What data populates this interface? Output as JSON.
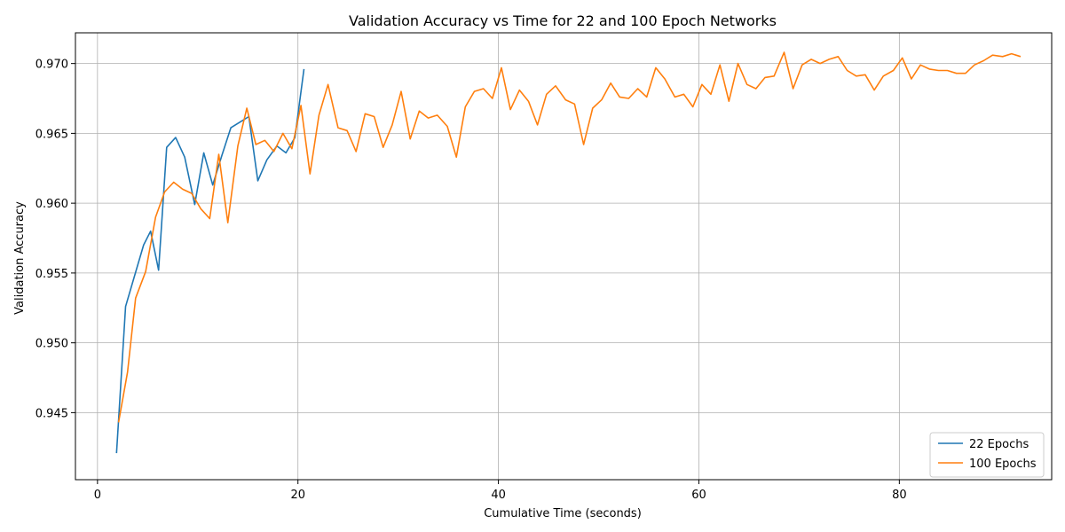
{
  "chart_data": {
    "type": "line",
    "title": "Validation Accuracy vs Time for 22 and 100 Epoch Networks",
    "xlabel": "Cumulative Time (seconds)",
    "ylabel": "Validation Accuracy",
    "xlim": [
      -2.2,
      95.2
    ],
    "ylim": [
      0.9402,
      0.9722
    ],
    "xticks": [
      0,
      20,
      40,
      60,
      80
    ],
    "xtick_labels": [
      "0",
      "20",
      "40",
      "60",
      "80"
    ],
    "yticks": [
      0.945,
      0.95,
      0.955,
      0.96,
      0.965,
      0.97
    ],
    "ytick_labels": [
      "0.945",
      "0.950",
      "0.955",
      "0.960",
      "0.965",
      "0.970"
    ],
    "grid": true,
    "legend_position": "lower right",
    "series": [
      {
        "name": "22 Epochs",
        "color": "#1f77b4",
        "x": [
          1.9,
          2.8,
          3.7,
          4.6,
          5.3,
          6.1,
          6.9,
          7.8,
          8.7,
          9.7,
          10.6,
          11.5,
          12.4,
          13.3,
          14.2,
          15.1,
          16.0,
          16.9,
          17.9,
          18.8,
          19.7,
          20.6
        ],
        "y": [
          0.9421,
          0.9526,
          0.9548,
          0.957,
          0.958,
          0.9552,
          0.964,
          0.9647,
          0.9633,
          0.9599,
          0.9636,
          0.9613,
          0.9634,
          0.9654,
          0.9658,
          0.9662,
          0.9616,
          0.9631,
          0.9641,
          0.9636,
          0.9647,
          0.9696
        ]
      },
      {
        "name": "100 Epochs",
        "color": "#ff7f0e",
        "x": [
          2.1,
          3.0,
          3.8,
          4.8,
          5.8,
          6.7,
          7.6,
          8.5,
          9.4,
          10.3,
          11.2,
          12.1,
          13.0,
          14.0,
          14.9,
          15.8,
          16.7,
          17.6,
          18.5,
          19.4,
          20.3,
          21.2,
          22.1,
          23.0,
          24.0,
          24.9,
          25.8,
          26.7,
          27.6,
          28.5,
          29.4,
          30.3,
          31.2,
          32.1,
          33.0,
          33.9,
          34.9,
          35.8,
          36.7,
          37.6,
          38.5,
          39.4,
          40.3,
          41.2,
          42.1,
          43.0,
          43.9,
          44.8,
          45.7,
          46.7,
          47.6,
          48.5,
          49.4,
          50.3,
          51.2,
          52.1,
          53.0,
          53.9,
          54.8,
          55.7,
          56.6,
          57.6,
          58.5,
          59.4,
          60.3,
          61.2,
          62.1,
          63.0,
          63.9,
          64.8,
          65.7,
          66.6,
          67.5,
          68.5,
          69.4,
          70.3,
          71.2,
          72.1,
          73.0,
          73.9,
          74.8,
          75.7,
          76.6,
          77.5,
          78.4,
          79.4,
          80.3,
          81.2,
          82.1,
          83.0,
          83.9,
          84.8,
          85.7,
          86.6,
          87.5,
          88.4,
          89.3,
          90.3,
          91.2,
          92.1
        ],
        "y": [
          0.9443,
          0.9479,
          0.9532,
          0.9551,
          0.959,
          0.9608,
          0.9615,
          0.961,
          0.9607,
          0.9596,
          0.9589,
          0.9635,
          0.9586,
          0.9641,
          0.9668,
          0.9642,
          0.9645,
          0.9637,
          0.965,
          0.9639,
          0.967,
          0.9621,
          0.9663,
          0.9685,
          0.9654,
          0.9652,
          0.9637,
          0.9664,
          0.9662,
          0.964,
          0.9656,
          0.968,
          0.9646,
          0.9666,
          0.9661,
          0.9663,
          0.9655,
          0.9633,
          0.9669,
          0.968,
          0.9682,
          0.9675,
          0.9697,
          0.9667,
          0.9681,
          0.9673,
          0.9656,
          0.9678,
          0.9684,
          0.9674,
          0.9671,
          0.9642,
          0.9668,
          0.9674,
          0.9686,
          0.9676,
          0.9675,
          0.9682,
          0.9676,
          0.9697,
          0.9689,
          0.9676,
          0.9678,
          0.9669,
          0.9685,
          0.9678,
          0.9699,
          0.9673,
          0.97,
          0.9685,
          0.9682,
          0.969,
          0.9691,
          0.9708,
          0.9682,
          0.9699,
          0.9703,
          0.97,
          0.9703,
          0.9705,
          0.9695,
          0.9691,
          0.9692,
          0.9681,
          0.9691,
          0.9695,
          0.9704,
          0.9689,
          0.9699,
          0.9696,
          0.9695,
          0.9695,
          0.9693,
          0.9693,
          0.9699,
          0.9702,
          0.9706,
          0.9705,
          0.9707,
          0.9705
        ]
      }
    ]
  }
}
